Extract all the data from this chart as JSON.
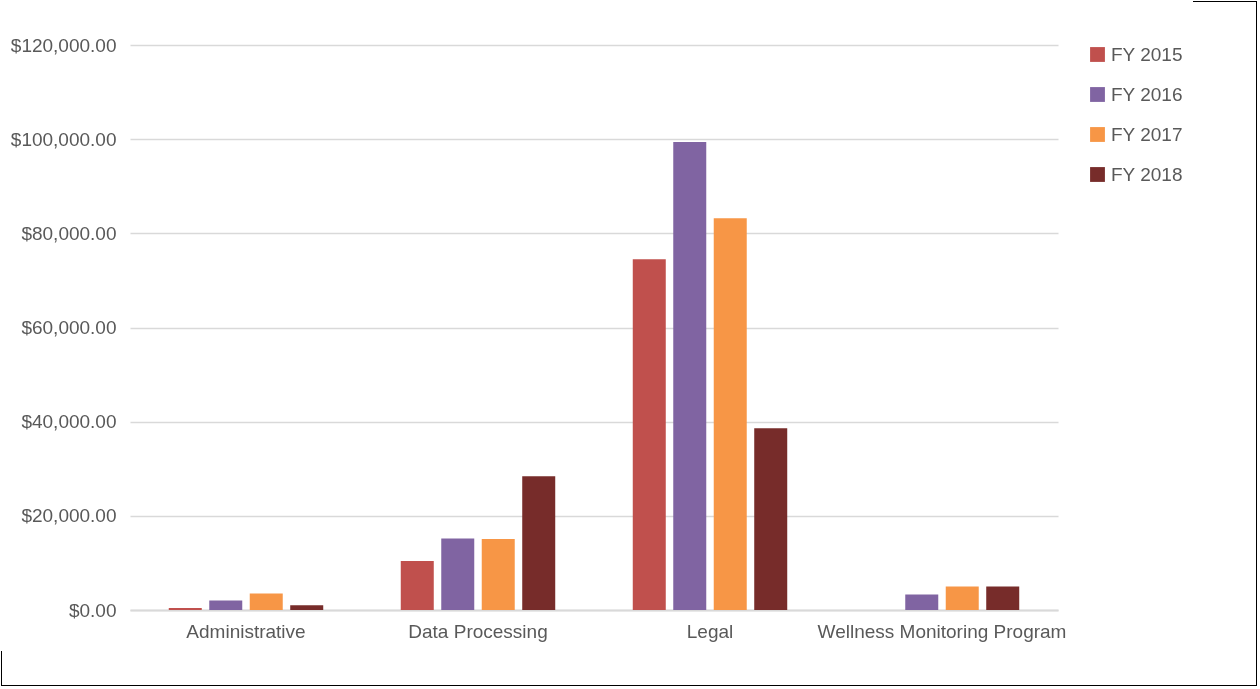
{
  "chart_data": {
    "type": "bar",
    "categories": [
      "Administrative",
      "Data Processing",
      "Legal",
      "Wellness Monitoring Program"
    ],
    "series": [
      {
        "name": "FY 2015",
        "color": "#c0504d",
        "values": [
          400,
          10400,
          74500,
          null
        ]
      },
      {
        "name": "FY 2016",
        "color": "#8064a2",
        "values": [
          2000,
          15200,
          99400,
          3300
        ]
      },
      {
        "name": "FY 2017",
        "color": "#f79646",
        "values": [
          3500,
          15100,
          83200,
          5000
        ]
      },
      {
        "name": "FY 2018",
        "color": "#772c2a",
        "values": [
          1000,
          28400,
          38600,
          5000
        ]
      }
    ],
    "ylim": [
      0,
      120000
    ],
    "yticks": [
      {
        "value": 0,
        "label": "$0.00"
      },
      {
        "value": 20000,
        "label": "$20,000.00"
      },
      {
        "value": 40000,
        "label": "$40,000.00"
      },
      {
        "value": 60000,
        "label": "$60,000.00"
      },
      {
        "value": 80000,
        "label": "$80,000.00"
      },
      {
        "value": 100000,
        "label": "$100,000.00"
      },
      {
        "value": 120000,
        "label": "$120,000.00"
      }
    ],
    "grid": "y",
    "legend": "right"
  }
}
